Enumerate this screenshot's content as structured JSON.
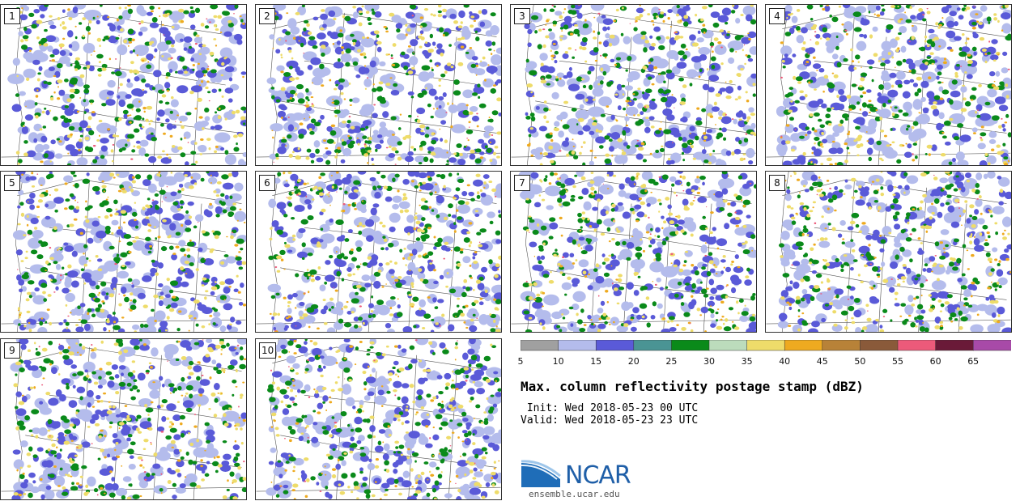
{
  "title": "Max. column reflectivity postage stamp (dBZ)",
  "init_label": " Init: Wed 2018-05-23 00 UTC",
  "valid_label": "Valid: Wed 2018-05-23 23 UTC",
  "logo": {
    "name": "NCAR",
    "url_text": "ensemble.ucar.edu"
  },
  "panels": [
    {
      "number": "1"
    },
    {
      "number": "2"
    },
    {
      "number": "3"
    },
    {
      "number": "4"
    },
    {
      "number": "5"
    },
    {
      "number": "6"
    },
    {
      "number": "7"
    },
    {
      "number": "8"
    },
    {
      "number": "9"
    },
    {
      "number": "10"
    }
  ],
  "colorbar": {
    "ticks": [
      "5",
      "10",
      "15",
      "20",
      "25",
      "30",
      "35",
      "40",
      "45",
      "50",
      "55",
      "60",
      "65"
    ],
    "colors": [
      "#a0a0a0",
      "#b4bcec",
      "#5a5ad8",
      "#4a9494",
      "#0a8a1a",
      "#bcdcbc",
      "#eedc6a",
      "#eeaa20",
      "#b88238",
      "#8a5a3a",
      "#ec5a7a",
      "#6a1a38",
      "#a84aa8"
    ]
  }
}
